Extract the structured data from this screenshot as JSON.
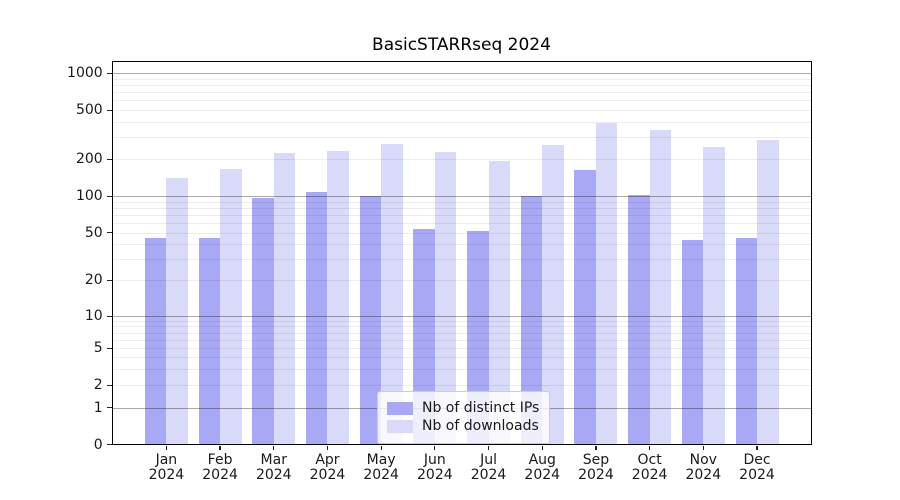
{
  "title": "BasicSTARRseq 2024",
  "chart_data": {
    "type": "bar",
    "title": "BasicSTARRseq 2024",
    "categories": [
      "Jan 2024",
      "Feb 2024",
      "Mar 2024",
      "Apr 2024",
      "May 2024",
      "Jun 2024",
      "Jul 2024",
      "Aug 2024",
      "Sep 2024",
      "Oct 2024",
      "Nov 2024",
      "Dec 2024"
    ],
    "x_tick_months": [
      "Jan",
      "Feb",
      "Mar",
      "Apr",
      "May",
      "Jun",
      "Jul",
      "Aug",
      "Sep",
      "Oct",
      "Nov",
      "Dec"
    ],
    "x_tick_year": "2024",
    "series": [
      {
        "name": "Nb of distinct IPs",
        "color": "#a8a8f4",
        "values": [
          45,
          45,
          97,
          108,
          100,
          54,
          52,
          100,
          162,
          103,
          43,
          45
        ]
      },
      {
        "name": "Nb of downloads",
        "color": "#d9d9f9",
        "values": [
          140,
          165,
          222,
          233,
          263,
          226,
          191,
          258,
          394,
          344,
          249,
          285
        ]
      }
    ],
    "y_ticks": [
      0,
      1,
      2,
      5,
      10,
      20,
      50,
      100,
      200,
      500,
      1000
    ],
    "y_scale": "symlog",
    "ylim": [
      0,
      1230
    ],
    "xlabel": "",
    "ylabel": "",
    "grid": true,
    "legend_position": "lower center",
    "major_grid_values": [
      1,
      10,
      100,
      1000
    ]
  }
}
